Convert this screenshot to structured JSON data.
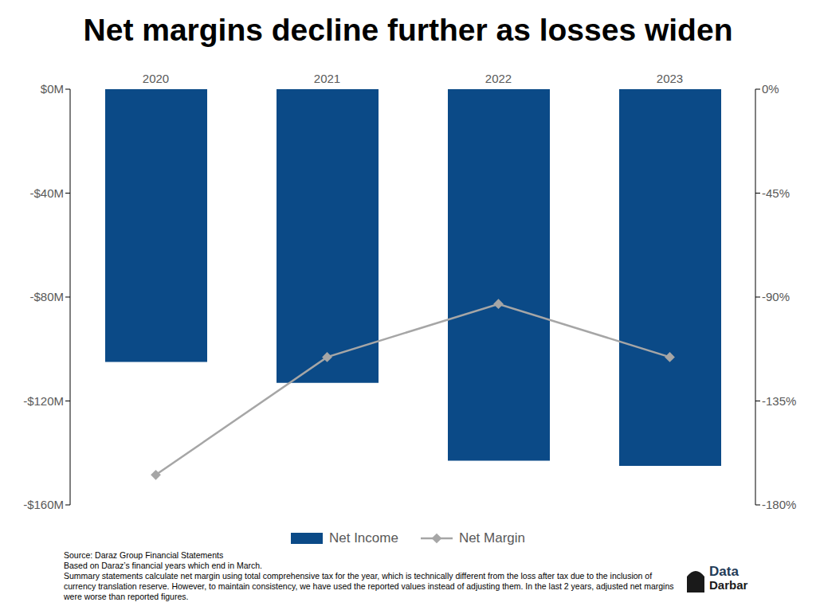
{
  "chart_data": {
    "type": "bar",
    "title": "Net margins decline further as losses widen",
    "categories": [
      "2020",
      "2021",
      "2022",
      "2023"
    ],
    "series": [
      {
        "name": "Net Income",
        "type": "bar",
        "color": "#0b4a87",
        "values": [
          -105,
          -113,
          -143,
          -145
        ]
      },
      {
        "name": "Net Margin",
        "type": "line",
        "axis": "y2",
        "color": "#a6a6a6",
        "marker": "diamond",
        "values": [
          -167,
          -116,
          -93,
          -116
        ]
      }
    ],
    "ylim": [
      -160,
      0
    ],
    "yticks": [
      {
        "value": -160,
        "label": "-$160M"
      },
      {
        "value": -120,
        "label": "-$120M"
      },
      {
        "value": -80,
        "label": "-$80M"
      },
      {
        "value": -40,
        "label": "-$40M"
      },
      {
        "value": 0,
        "label": "$0M"
      }
    ],
    "y2lim": [
      -180,
      0
    ],
    "y2ticks": [
      {
        "value": -180,
        "label": "-180%"
      },
      {
        "value": -135,
        "label": "-135%"
      },
      {
        "value": -90,
        "label": "-90%"
      },
      {
        "value": -45,
        "label": "-45%"
      },
      {
        "value": 0,
        "label": "0%"
      }
    ],
    "grid": false,
    "legend": "bottom",
    "notes": [
      "Source: Daraz Group Financial Statements",
      "Based on Daraz’s financial years which end in March.",
      "Summary statements calculate net margin using total comprehensive tax for the year, which is technically different from the loss after tax due to the inclusion of currency translation reserve. However, to maintain consistency, we have used the reported values instead of adjusting them. In the last 2 years, adjusted net margins were worse than reported figures."
    ],
    "logo": [
      "Data",
      "Darbar"
    ]
  }
}
